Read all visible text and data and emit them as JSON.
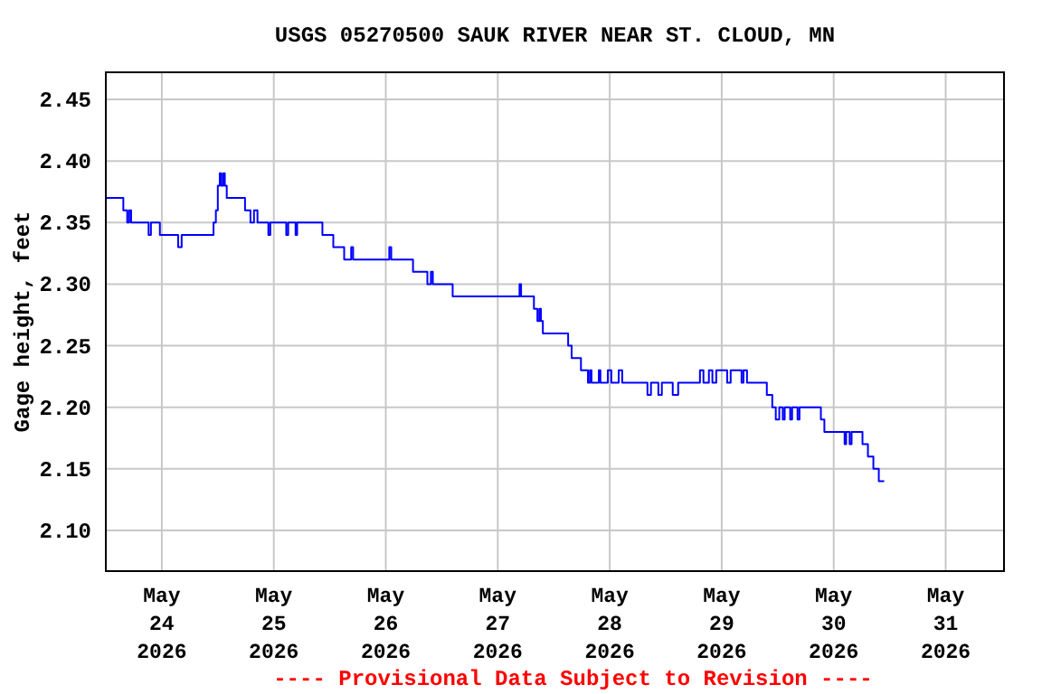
{
  "chart_data": {
    "type": "step",
    "title": "USGS 05270500 SAUK RIVER NEAR ST. CLOUD, MN",
    "ylabel": "Gage height, feet",
    "annotations": [
      "---- Provisional Data Subject to Revision ----"
    ],
    "xlim": [
      "2026-05-23T12:00",
      "2026-05-31T12:30"
    ],
    "xticks": [
      {
        "value": "2026-05-24",
        "label": "May\n24\n2026"
      },
      {
        "value": "2026-05-25",
        "label": "May\n25\n2026"
      },
      {
        "value": "2026-05-26",
        "label": "May\n26\n2026"
      },
      {
        "value": "2026-05-27",
        "label": "May\n27\n2026"
      },
      {
        "value": "2026-05-28",
        "label": "May\n28\n2026"
      },
      {
        "value": "2026-05-29",
        "label": "May\n29\n2026"
      },
      {
        "value": "2026-05-30",
        "label": "May\n30\n2026"
      },
      {
        "value": "2026-05-31",
        "label": "May\n31\n2026"
      }
    ],
    "ylim": [
      2.067,
      2.472
    ],
    "yticks": [
      {
        "value": 2.1,
        "label": "2.10"
      },
      {
        "value": 2.15,
        "label": "2.15"
      },
      {
        "value": 2.2,
        "label": "2.20"
      },
      {
        "value": 2.25,
        "label": "2.25"
      },
      {
        "value": 2.3,
        "label": "2.30"
      },
      {
        "value": 2.35,
        "label": "2.35"
      },
      {
        "value": 2.4,
        "label": "2.40"
      },
      {
        "value": 2.45,
        "label": "2.45"
      }
    ],
    "grid": true,
    "series": [
      {
        "color": "#0000ff",
        "x": [
          "2026-05-23T12:12",
          "2026-05-23T15:45",
          "2026-05-23T16:35",
          "2026-05-23T17:00",
          "2026-05-23T17:25",
          "2026-05-23T21:10",
          "2026-05-23T21:40",
          "2026-05-23T23:35",
          "2026-05-24T03:30",
          "2026-05-24T04:15",
          "2026-05-24T11:05",
          "2026-05-24T11:35",
          "2026-05-24T12:00",
          "2026-05-24T12:25",
          "2026-05-24T12:45",
          "2026-05-24T13:10",
          "2026-05-24T13:30",
          "2026-05-24T13:55",
          "2026-05-24T17:50",
          "2026-05-24T19:00",
          "2026-05-24T19:45",
          "2026-05-24T20:30",
          "2026-05-24T22:50",
          "2026-05-24T23:15",
          "2026-05-25T02:40",
          "2026-05-25T03:05",
          "2026-05-25T04:40",
          "2026-05-25T05:00",
          "2026-05-25T10:25",
          "2026-05-25T12:45",
          "2026-05-25T15:05",
          "2026-05-25T16:35",
          "2026-05-25T17:00",
          "2026-05-26T00:45",
          "2026-05-26T01:10",
          "2026-05-26T05:50",
          "2026-05-26T08:55",
          "2026-05-26T09:40",
          "2026-05-26T10:05",
          "2026-05-26T14:20",
          "2026-05-27T04:40",
          "2026-05-27T05:00",
          "2026-05-27T07:45",
          "2026-05-27T08:30",
          "2026-05-27T08:55",
          "2026-05-27T09:15",
          "2026-05-27T09:40",
          "2026-05-27T15:05",
          "2026-05-27T15:50",
          "2026-05-27T17:50",
          "2026-05-27T19:20",
          "2026-05-27T19:45",
          "2026-05-27T20:05",
          "2026-05-27T21:40",
          "2026-05-27T22:00",
          "2026-05-27T23:35",
          "2026-05-28T00:20",
          "2026-05-28T01:55",
          "2026-05-28T02:40",
          "2026-05-28T08:05",
          "2026-05-28T08:50",
          "2026-05-28T10:25",
          "2026-05-28T11:10",
          "2026-05-28T13:30",
          "2026-05-28T14:40",
          "2026-05-28T19:20",
          "2026-05-28T20:05",
          "2026-05-28T21:15",
          "2026-05-28T22:00",
          "2026-05-28T22:50",
          "2026-05-29T01:10",
          "2026-05-29T01:55",
          "2026-05-29T04:15",
          "2026-05-29T04:40",
          "2026-05-29T05:25",
          "2026-05-29T09:40",
          "2026-05-29T10:50",
          "2026-05-29T11:35",
          "2026-05-29T12:20",
          "2026-05-29T13:05",
          "2026-05-29T13:30",
          "2026-05-29T14:40",
          "2026-05-29T15:05",
          "2026-05-29T16:15",
          "2026-05-29T16:40",
          "2026-05-29T21:15",
          "2026-05-29T22:00",
          "2026-05-30T02:20",
          "2026-05-30T02:40",
          "2026-05-30T03:25",
          "2026-05-30T03:50",
          "2026-05-30T06:10",
          "2026-05-30T07:20",
          "2026-05-30T08:30",
          "2026-05-30T09:40",
          "2026-05-30T10:50"
        ],
        "values": [
          2.37,
          2.36,
          2.35,
          2.36,
          2.35,
          2.34,
          2.35,
          2.34,
          2.33,
          2.34,
          2.35,
          2.36,
          2.38,
          2.39,
          2.38,
          2.39,
          2.38,
          2.37,
          2.36,
          2.35,
          2.36,
          2.35,
          2.34,
          2.35,
          2.34,
          2.35,
          2.34,
          2.35,
          2.34,
          2.33,
          2.32,
          2.33,
          2.32,
          2.33,
          2.32,
          2.31,
          2.3,
          2.31,
          2.3,
          2.29,
          2.3,
          2.29,
          2.28,
          2.27,
          2.28,
          2.27,
          2.26,
          2.25,
          2.24,
          2.23,
          2.22,
          2.23,
          2.22,
          2.23,
          2.22,
          2.23,
          2.22,
          2.23,
          2.22,
          2.21,
          2.22,
          2.21,
          2.22,
          2.21,
          2.22,
          2.23,
          2.22,
          2.23,
          2.22,
          2.23,
          2.22,
          2.23,
          2.22,
          2.23,
          2.22,
          2.21,
          2.2,
          2.19,
          2.2,
          2.19,
          2.2,
          2.19,
          2.2,
          2.19,
          2.2,
          2.19,
          2.18,
          2.17,
          2.18,
          2.17,
          2.18,
          2.17,
          2.16,
          2.15,
          2.14,
          2.14
        ]
      }
    ]
  }
}
